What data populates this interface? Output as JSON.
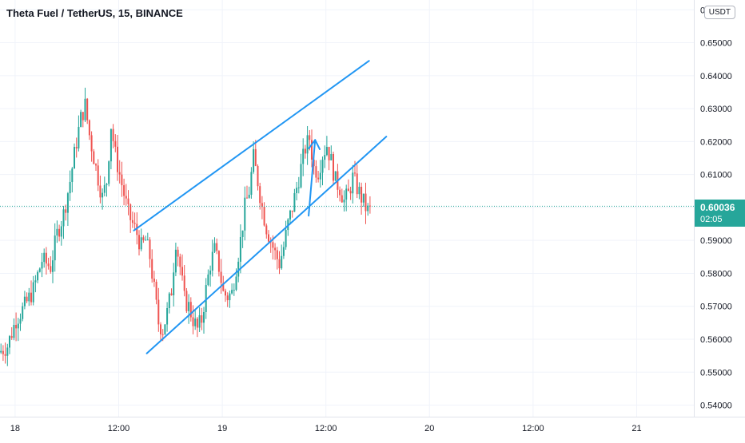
{
  "header": {
    "symbol_title": "Theta Fuel / TetherUS, 15, BINANCE",
    "currency": "USDT"
  },
  "colors": {
    "up": "#26a69a",
    "down": "#ef5350",
    "drawing": "#2196f3",
    "axis_text": "#131722",
    "grid": "#f0f3fa"
  },
  "chart_data": {
    "type": "candlestick",
    "title": "Theta Fuel / TetherUS, 15, BINANCE",
    "yaxis_unit": "USDT",
    "ylim": [
      0.5365,
      0.6637
    ],
    "y_ticks": [
      "0.66000",
      "0.65000",
      "0.64000",
      "0.63000",
      "0.62000",
      "0.61000",
      "0.60000",
      "0.59000",
      "0.58000",
      "0.57000",
      "0.56000",
      "0.55000",
      "0.54000"
    ],
    "x_ticks": [
      "18",
      "12:00",
      "19",
      "12:00",
      "20",
      "12:00",
      "21"
    ],
    "x_tick_bar_index": [
      7,
      55,
      103,
      151,
      199,
      247,
      295
    ],
    "last_price": "0.60036",
    "countdown": "02:05",
    "bar_count": 172,
    "grid": true,
    "candles_sample": [
      {
        "t": "17 23:15",
        "o": 0.5585,
        "h": 0.5645,
        "l": 0.5525,
        "c": 0.5558
      },
      {
        "t": "18 06:00",
        "o": 0.5825,
        "h": 0.587,
        "l": 0.5775,
        "c": 0.5842
      },
      {
        "t": "18 10:00",
        "o": 0.6195,
        "h": 0.638,
        "l": 0.615,
        "c": 0.6285
      },
      {
        "t": "18 13:00",
        "o": 0.6285,
        "h": 0.63,
        "l": 0.603,
        "c": 0.608
      },
      {
        "t": "18 16:00",
        "o": 0.5905,
        "h": 0.595,
        "l": 0.582,
        "c": 0.584
      },
      {
        "t": "18 19:00",
        "o": 0.567,
        "h": 0.571,
        "l": 0.5545,
        "c": 0.56
      },
      {
        "t": "19 00:00",
        "o": 0.585,
        "h": 0.591,
        "l": 0.578,
        "c": 0.588
      },
      {
        "t": "19 03:00",
        "o": 0.568,
        "h": 0.573,
        "l": 0.565,
        "c": 0.571
      },
      {
        "t": "19 07:00",
        "o": 0.603,
        "h": 0.616,
        "l": 0.6,
        "c": 0.615
      },
      {
        "t": "19 10:00",
        "o": 0.586,
        "h": 0.59,
        "l": 0.58,
        "c": 0.588
      },
      {
        "t": "19 12:15",
        "o": 0.6195,
        "h": 0.623,
        "l": 0.615,
        "c": 0.618
      },
      {
        "t": "19 15:30",
        "o": 0.603,
        "h": 0.608,
        "l": 0.596,
        "c": 0.6
      }
    ]
  },
  "drawings": {
    "channel_upper": {
      "from": {
        "bar": 62,
        "price": 0.593
      },
      "to": {
        "bar": 171,
        "price": 0.6445
      }
    },
    "channel_lower": {
      "from": {
        "bar": 68,
        "price": 0.5557
      },
      "to": {
        "bar": 179,
        "price": 0.6215
      }
    },
    "projection_arrow": {
      "from": {
        "bar": 143,
        "price": 0.5975
      },
      "to": {
        "bar": 146,
        "price": 0.6205
      }
    }
  }
}
